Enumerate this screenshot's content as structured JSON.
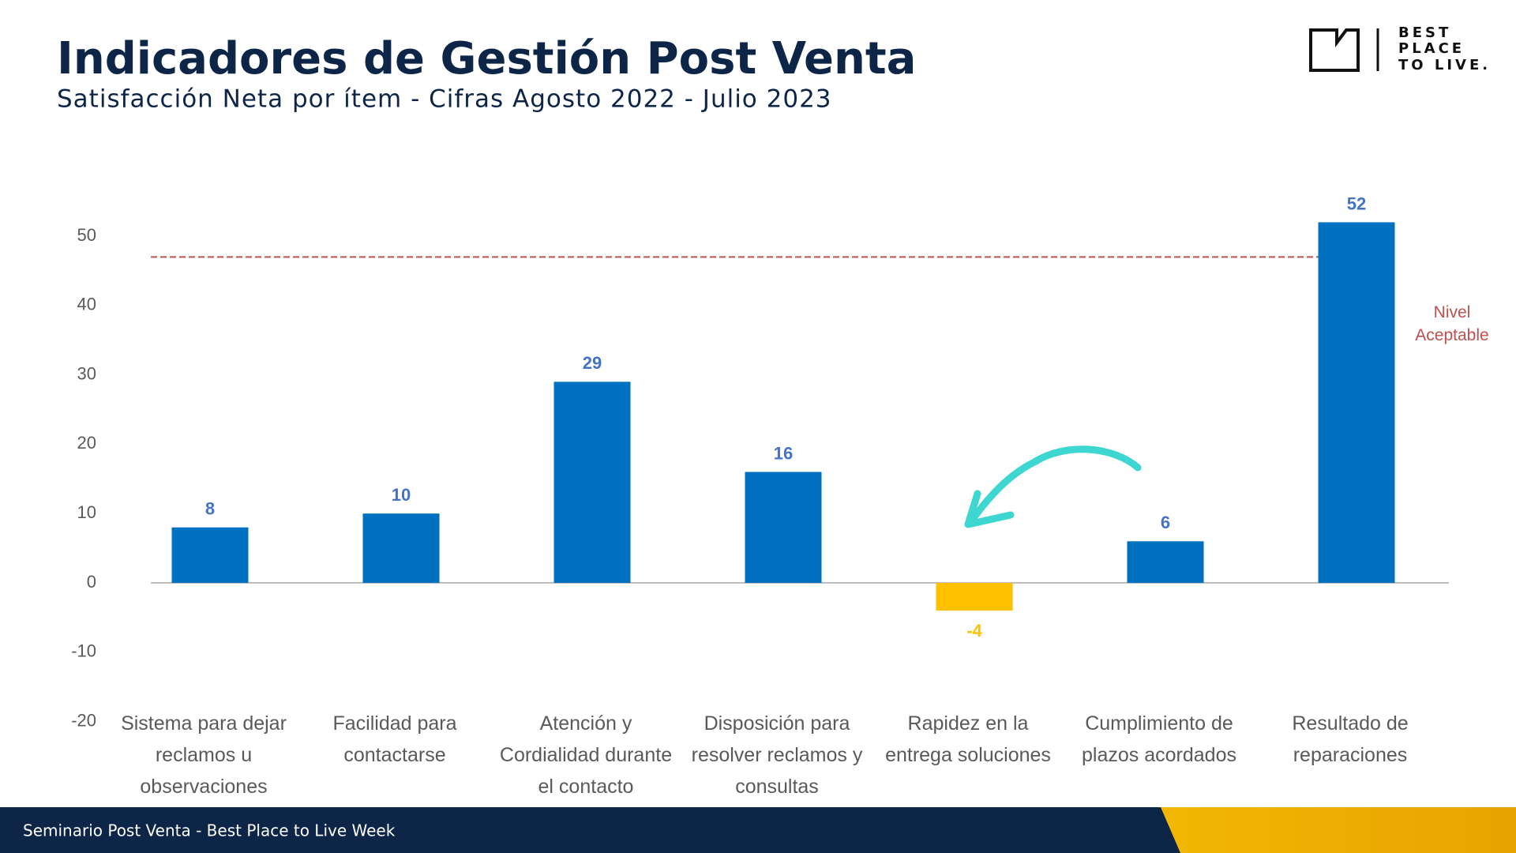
{
  "header": {
    "title": "Indicadores de Gestión Post Venta",
    "subtitle": "Satisfacción Neta por ítem - Cifras Agosto 2022 - Julio 2023"
  },
  "logo": {
    "lines": [
      "BEST",
      "PLACE",
      "TO LIVE."
    ]
  },
  "footer": {
    "text": "Seminario Post Venta - Best Place to Live Week"
  },
  "chart_data": {
    "type": "bar",
    "categories": [
      "Sistema para dejar reclamos u observaciones",
      "Facilidad para contactarse",
      "Atención y Cordialidad durante el contacto",
      "Disposición para resolver reclamos y consultas",
      "Rapidez en la entrega soluciones",
      "Cumplimiento de plazos acordados",
      "Resultado de reparaciones"
    ],
    "values": [
      8,
      10,
      29,
      16,
      -4,
      6,
      52
    ],
    "colors": [
      "#0070c0",
      "#0070c0",
      "#0070c0",
      "#0070c0",
      "#ffc000",
      "#0070c0",
      "#0070c0"
    ],
    "label_colors": [
      "#4472c4",
      "#4472c4",
      "#4472c4",
      "#4472c4",
      "#ffc000",
      "#4472c4",
      "#4472c4"
    ],
    "ylim": [
      -20,
      50
    ],
    "yticks": [
      -20,
      -10,
      0,
      10,
      20,
      30,
      40,
      50
    ],
    "grid": false,
    "reference_line": {
      "value": 47,
      "label": "Nivel Aceptable",
      "color": "#c0504d"
    }
  }
}
